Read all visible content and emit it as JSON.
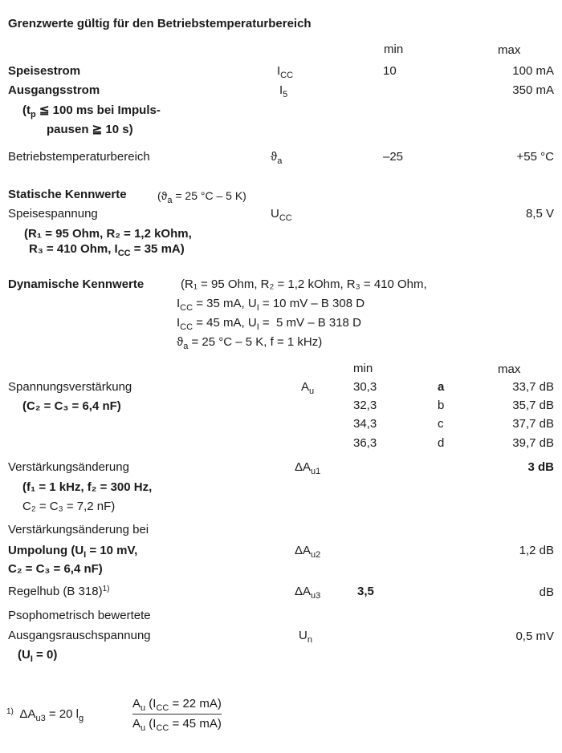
{
  "limits": {
    "title": "Grenzwerte gültig für den Betriebstemperaturbereich",
    "col_min": "min",
    "col_max": "max",
    "rows": [
      {
        "label": "Speisestrom",
        "sym": "I",
        "sym_sub": "CC",
        "min": "10",
        "max": "100 mA"
      },
      {
        "label": "Ausgangsstrom",
        "sym": "I",
        "sym_sub": "5",
        "min": "",
        "max": "350 mA"
      },
      {
        "label": "Betriebstemperaturbereich",
        "sym": "ϑ",
        "sym_sub": "a",
        "min": "–25",
        "max": "+55 °C"
      }
    ],
    "note1_a": "(t",
    "note1_sub": "p",
    "note1_b": " ≦ 100 ms bei Impuls-",
    "note2": "pausen ≧ 10 s)"
  },
  "static": {
    "title": "Statische Kennwerte",
    "cond_a": "(ϑ",
    "cond_sub": "a",
    "cond_b": " = 25 °C – 5 K)",
    "label": "Speisespannung",
    "sym": "U",
    "sym_sub": "CC",
    "max": "8,5 V",
    "note1": "(R₁ = 95 Ohm, R₂ = 1,2 kOhm,",
    "note2_a": "R₃ = 410 Ohm, I",
    "note2_sub": "CC",
    "note2_b": " = 35 mA)"
  },
  "dynamic": {
    "title": "Dynamische Kennwerte",
    "cond1": "(R₁ = 95 Ohm, R₂ = 1,2 kOhm, R₃ = 410 Ohm,",
    "cond2_a": "I",
    "cond2_sub": "CC",
    "cond2_b": " = 35 mA, U",
    "cond2_sub2": "I",
    "cond2_c": " = 10 mV – B 308 D",
    "cond3_a": "I",
    "cond3_sub": "CC",
    "cond3_b": " = 45 mA, U",
    "cond3_sub2": "I",
    "cond3_c": " =  5 mV – B 318 D",
    "cond4_a": "ϑ",
    "cond4_sub": "a",
    "cond4_b": " = 25 °C – 5 K, f = 1 kHz)",
    "col_min": "min",
    "col_max": "max",
    "gain": {
      "label": "Spannungsverstärkung",
      "note": "(C₂ = C₃ = 6,4 nF)",
      "sym": "A",
      "sym_sub": "u",
      "groups": [
        {
          "min": "30,3",
          "group": "a",
          "max": "33,7 dB"
        },
        {
          "min": "32,3",
          "group": "b",
          "max": "35,7 dB"
        },
        {
          "min": "34,3",
          "group": "c",
          "max": "37,7 dB"
        },
        {
          "min": "36,3",
          "group": "d",
          "max": "39,7 dB"
        }
      ]
    },
    "gain_change": {
      "label": "Verstärkungsänderung",
      "note1": "(f₁ = 1 kHz, f₂ = 300 Hz,",
      "note2": "C₂ = C₃ = 7,2 nF)",
      "sym": "ΔA",
      "sym_sub": "u1",
      "max": "3 dB"
    },
    "gain_change_pol": {
      "label1": "Verstärkungsänderung bei",
      "label2_a": "Umpolung (U",
      "label2_sub": "I",
      "label2_b": " = 10 mV,",
      "note": "C₂ = C₃ = 6,4 nF)",
      "sym": "ΔA",
      "sym_sub": "u2",
      "max": "1,2 dB"
    },
    "control": {
      "label": "Regelhub (B 318)",
      "footnote_ref": "1)",
      "sym": "ΔA",
      "sym_sub": "u3",
      "min": "3,5",
      "max": "dB"
    },
    "noise": {
      "label1": "Psophometrisch bewertete",
      "label2": "Ausgangsrauschspannung",
      "note_a": "(U",
      "note_sub": "I",
      "note_b": " = 0)",
      "sym": "U",
      "sym_sub": "n",
      "max": "0,5 mV"
    }
  },
  "footnote": {
    "ref": "1)",
    "lhs": "ΔA",
    "lhs_sub": "u3",
    "eq": " = 20 l",
    "eq_sub": "g",
    "num_a": "A",
    "num_sub": "u",
    "num_b": " (I",
    "num_sub2": "CC",
    "num_c": " = 22 mA)",
    "den_a": "A",
    "den_sub": "u",
    "den_b": " (I",
    "den_sub2": "CC",
    "den_c": " = 45 mA)"
  }
}
